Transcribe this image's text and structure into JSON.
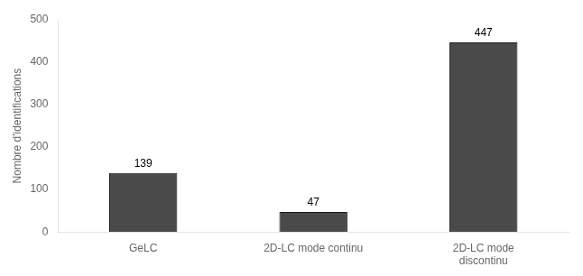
{
  "chart_data": {
    "type": "bar",
    "categories": [
      "GeLC",
      "2D-LC mode continu",
      "2D-LC mode\ndiscontinu"
    ],
    "values": [
      139,
      47,
      447
    ],
    "color": "#4a4a4a",
    "ylabel": "Nombre d'identifications",
    "ylim": [
      0,
      500
    ],
    "yticks": [
      0,
      100,
      200,
      300,
      400,
      500
    ],
    "data_labels": true,
    "grid": false
  }
}
